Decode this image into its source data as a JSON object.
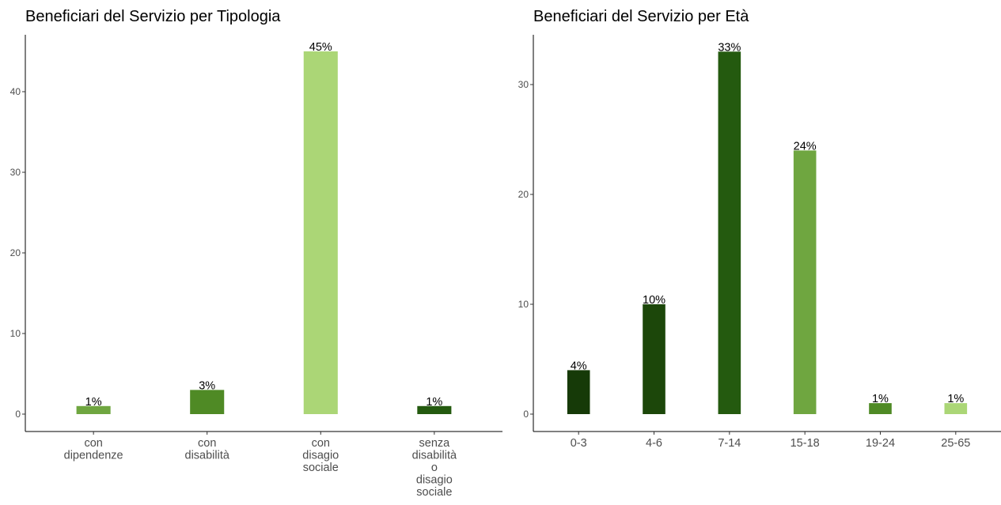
{
  "chart_data": [
    {
      "type": "bar",
      "title": "Beneficiari del Servizio per Tipologia",
      "categories": [
        [
          "con",
          "dipendenze"
        ],
        [
          "con",
          "disabilità"
        ],
        [
          "con",
          "disagio",
          "sociale"
        ],
        [
          "senza",
          "disabilità",
          "o",
          "disagio",
          "sociale"
        ]
      ],
      "values": [
        1,
        3,
        45,
        1
      ],
      "labels": [
        "1%",
        "3%",
        "45%",
        "1%"
      ],
      "colors": [
        "#6fa640",
        "#4f8a25",
        "#abd676",
        "#245a0f"
      ],
      "yticks": [
        0,
        10,
        20,
        30,
        40
      ],
      "ylim": [
        0,
        47.2
      ],
      "xlabel": "",
      "ylabel": "",
      "grid": false
    },
    {
      "type": "bar",
      "title": "Beneficiari del Servizio per Età",
      "categories": [
        [
          "0-3"
        ],
        [
          "4-6"
        ],
        [
          "7-14"
        ],
        [
          "15-18"
        ],
        [
          "19-24"
        ],
        [
          "25-65"
        ]
      ],
      "values": [
        4,
        10,
        33,
        24,
        1,
        1
      ],
      "labels": [
        "4%",
        "10%",
        "33%",
        "24%",
        "1%",
        "1%"
      ],
      "colors": [
        "#163a08",
        "#1c470a",
        "#245a0f",
        "#6fa640",
        "#4f8a25",
        "#abd676"
      ],
      "yticks": [
        0,
        10,
        20,
        30
      ],
      "ylim": [
        0,
        34.65
      ],
      "xlabel": "",
      "ylabel": "",
      "grid": false
    }
  ]
}
